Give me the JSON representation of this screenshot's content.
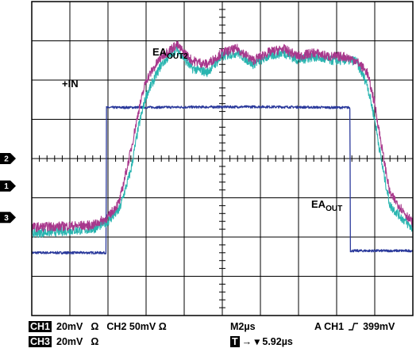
{
  "chart_data": {
    "type": "line",
    "title": "",
    "xlabel": "",
    "ylabel": "",
    "grid": true,
    "divisions": {
      "x": 10,
      "y": 8
    },
    "xlim": [
      0,
      10
    ],
    "ylim": [
      -4,
      4
    ],
    "x_unit_note": "time in screen divisions, 2µs per division",
    "series": [
      {
        "name": "+IN",
        "color": "#2b3a9c",
        "noise": 0.03,
        "x": [
          0,
          1.95,
          1.96,
          4.0,
          6.0,
          8.0,
          8.35,
          8.36,
          10
        ],
        "y": [
          -2.4,
          -2.4,
          1.3,
          1.31,
          1.32,
          1.3,
          1.3,
          -2.35,
          -2.35
        ]
      },
      {
        "name": "EA_OUT2",
        "color": "#2ab5b0",
        "noise": 0.12,
        "x": [
          0,
          1.6,
          2.0,
          2.3,
          2.6,
          2.8,
          3.0,
          3.4,
          3.8,
          4.2,
          4.6,
          5.0,
          5.4,
          5.8,
          6.2,
          6.6,
          7.0,
          7.4,
          7.8,
          8.2,
          8.5,
          8.8,
          9.0,
          9.2,
          9.4,
          10
        ],
        "y": [
          -1.9,
          -1.8,
          -1.6,
          -1.3,
          -0.3,
          0.8,
          1.6,
          2.4,
          2.8,
          2.3,
          2.2,
          2.6,
          2.7,
          2.4,
          2.6,
          2.7,
          2.5,
          2.6,
          2.5,
          2.5,
          2.5,
          1.9,
          1.0,
          -0.2,
          -1.2,
          -1.8
        ]
      },
      {
        "name": "EA_OUT",
        "color": "#a8388c",
        "noise": 0.12,
        "x": [
          0,
          1.6,
          2.0,
          2.3,
          2.6,
          2.8,
          3.0,
          3.4,
          3.8,
          4.2,
          4.6,
          5.0,
          5.4,
          5.8,
          6.2,
          6.6,
          7.0,
          7.4,
          7.8,
          8.2,
          8.5,
          8.8,
          9.0,
          9.2,
          9.4,
          10
        ],
        "y": [
          -1.75,
          -1.7,
          -1.5,
          -1.1,
          0.2,
          1.2,
          2.0,
          2.6,
          2.9,
          2.5,
          2.4,
          2.7,
          2.8,
          2.5,
          2.7,
          2.8,
          2.6,
          2.7,
          2.6,
          2.6,
          2.5,
          2.2,
          1.4,
          0.2,
          -0.9,
          -1.65
        ]
      }
    ],
    "annotations": [
      {
        "id": "in",
        "main": "+IN",
        "sub": ""
      },
      {
        "id": "ea_out2",
        "main": "EA",
        "sub": "OUT2"
      },
      {
        "id": "ea_out",
        "main": "EA",
        "sub": "OUT"
      }
    ],
    "channel_markers": [
      {
        "label": "2",
        "level": 0.0
      },
      {
        "label": "1",
        "level": -0.7
      },
      {
        "label": "3",
        "level": -1.5
      }
    ]
  },
  "readout": {
    "ch1_badge": "CH1",
    "ch1_scale": "20mV",
    "ch1_coupling": "Ω",
    "ch2_label": "CH2",
    "ch2_scale": "50mV",
    "ch2_coupling": "Ω",
    "timebase": "M2µs",
    "trigger_label": "A",
    "trigger_source": "CH1",
    "trigger_level": "399mV",
    "ch3_badge": "CH3",
    "ch3_scale": "20mV",
    "ch3_coupling": "Ω",
    "trigger_pos_badge": "T",
    "trigger_pos_arrow": "→ ▾",
    "trigger_pos_value": "5.92µs"
  }
}
